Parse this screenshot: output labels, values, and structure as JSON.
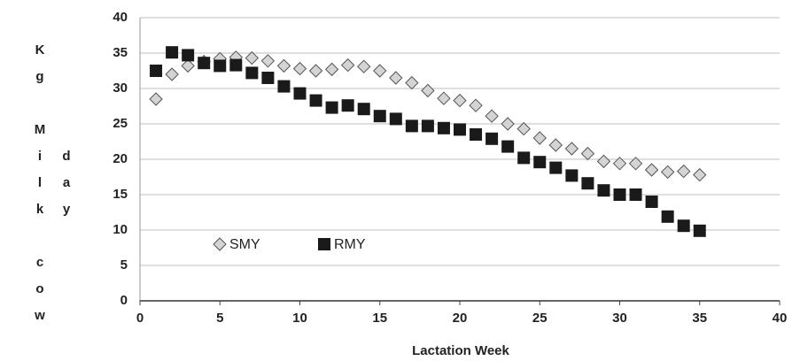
{
  "chart_data": {
    "type": "scatter",
    "x_label": "Lactation Week",
    "y_label": [
      "Kg Milk cow",
      "day"
    ],
    "xlim": [
      0,
      40
    ],
    "xticks": [
      0,
      5,
      10,
      15,
      20,
      25,
      30,
      35,
      40
    ],
    "ylim": [
      0,
      40
    ],
    "yticks": [
      0,
      5,
      10,
      15,
      20,
      25,
      30,
      35,
      40
    ],
    "grid": true,
    "legend": "bottom-left",
    "x": [
      1,
      2,
      3,
      4,
      5,
      6,
      7,
      8,
      9,
      10,
      11,
      12,
      13,
      14,
      15,
      16,
      17,
      18,
      19,
      20,
      21,
      22,
      23,
      24,
      25,
      26,
      27,
      28,
      29,
      30,
      31,
      32,
      33,
      34,
      35
    ],
    "series": [
      {
        "name": "SMY",
        "color": "#d4d4d4",
        "marker": "diamond",
        "values": [
          28.5,
          32,
          33.2,
          33.8,
          34.2,
          34.4,
          34.3,
          33.9,
          33.2,
          32.8,
          32.5,
          32.7,
          33.3,
          33.1,
          32.5,
          31.5,
          30.8,
          29.7,
          28.6,
          28.3,
          27.6,
          26.1,
          25,
          24.3,
          23,
          22,
          21.5,
          20.8,
          19.7,
          19.4,
          19.4,
          18.5,
          18.2,
          18.3,
          17.8
        ]
      },
      {
        "name": "RMY",
        "color": "#1a1a1a",
        "marker": "square",
        "values": [
          32.5,
          35.1,
          34.7,
          33.6,
          33.2,
          33.3,
          32.2,
          31.5,
          30.3,
          29.3,
          28.3,
          27.3,
          27.6,
          27.1,
          26.1,
          25.7,
          24.7,
          24.7,
          24.4,
          24.2,
          23.5,
          22.9,
          21.8,
          20.2,
          19.6,
          18.8,
          17.7,
          16.6,
          15.6,
          15,
          15,
          14,
          11.9,
          10.6,
          9.9
        ]
      }
    ]
  }
}
